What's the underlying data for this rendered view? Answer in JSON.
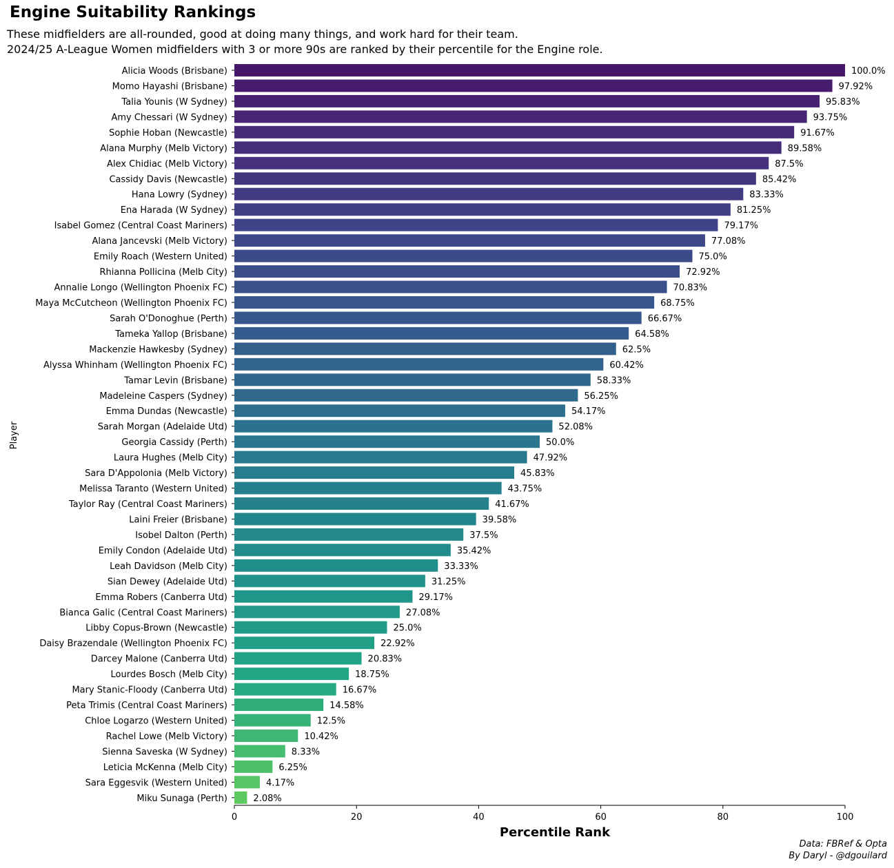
{
  "title": "Engine Suitability Rankings",
  "subtitle_lines": [
    "These midfielders are all-rounded, good at doing many things, and work hard for their team.",
    "2024/25 A-League Women midfielders with 3 or more 90s are ranked by their percentile for the Engine role."
  ],
  "credits": {
    "source": "Data: FBRef & Opta",
    "author": "By Daryl - @dgouilard"
  },
  "chart_data": {
    "type": "bar",
    "orientation": "horizontal",
    "xlabel": "Percentile Rank",
    "ylabel": "Player",
    "xlim": [
      0,
      100
    ],
    "xticks": [
      0,
      20,
      40,
      60,
      80,
      100
    ],
    "colormap": "viridis",
    "value_suffix": "%",
    "grid": false,
    "categories": [
      "Alicia Woods (Brisbane)",
      "Momo Hayashi (Brisbane)",
      "Talia Younis (W Sydney)",
      "Amy Chessari (W Sydney)",
      "Sophie Hoban (Newcastle)",
      "Alana Murphy (Melb Victory)",
      "Alex Chidiac (Melb Victory)",
      "Cassidy Davis (Newcastle)",
      "Hana Lowry (Sydney)",
      "Ena Harada (W Sydney)",
      "Isabel Gomez (Central Coast Mariners)",
      "Alana Jancevski (Melb Victory)",
      "Emily Roach (Western United)",
      "Rhianna Pollicina (Melb City)",
      "Annalie Longo (Wellington Phoenix FC)",
      "Maya McCutcheon (Wellington Phoenix FC)",
      "Sarah O'Donoghue (Perth)",
      "Tameka Yallop (Brisbane)",
      "Mackenzie Hawkesby (Sydney)",
      "Alyssa Whinham (Wellington Phoenix FC)",
      "Tamar Levin (Brisbane)",
      "Madeleine Caspers (Sydney)",
      "Emma Dundas (Newcastle)",
      "Sarah Morgan (Adelaide Utd)",
      "Georgia Cassidy (Perth)",
      "Laura Hughes (Melb City)",
      "Sara D'Appolonia (Melb Victory)",
      "Melissa Taranto (Western United)",
      "Taylor Ray (Central Coast Mariners)",
      "Laini Freier (Brisbane)",
      "Isobel Dalton (Perth)",
      "Emily Condon (Adelaide Utd)",
      "Leah Davidson (Melb City)",
      "Sian Dewey (Adelaide Utd)",
      "Emma Robers (Canberra Utd)",
      "Bianca Galic (Central Coast Mariners)",
      "Libby Copus-Brown (Newcastle)",
      "Daisy Brazendale (Wellington Phoenix FC)",
      "Darcey Malone (Canberra Utd)",
      "Lourdes Bosch (Melb City)",
      "Mary Stanic-Floody (Canberra Utd)",
      "Peta Trimis (Central Coast Mariners)",
      "Chloe Logarzo (Western United)",
      "Rachel Lowe (Melb Victory)",
      "Sienna Saveska (W Sydney)",
      "Leticia McKenna (Melb City)",
      "Sara Eggesvik (Western United)",
      "Miku Sunaga (Perth)"
    ],
    "values": [
      100.0,
      97.92,
      95.83,
      93.75,
      91.67,
      89.58,
      87.5,
      85.42,
      83.33,
      81.25,
      79.17,
      77.08,
      75.0,
      72.92,
      70.83,
      68.75,
      66.67,
      64.58,
      62.5,
      60.42,
      58.33,
      56.25,
      54.17,
      52.08,
      50.0,
      47.92,
      45.83,
      43.75,
      41.67,
      39.58,
      37.5,
      35.42,
      33.33,
      31.25,
      29.17,
      27.08,
      25.0,
      22.92,
      20.83,
      18.75,
      16.67,
      14.58,
      12.5,
      10.42,
      8.33,
      6.25,
      4.17,
      2.08
    ],
    "value_labels": [
      "100.0%",
      "97.92%",
      "95.83%",
      "93.75%",
      "91.67%",
      "89.58%",
      "87.5%",
      "85.42%",
      "83.33%",
      "81.25%",
      "79.17%",
      "77.08%",
      "75.0%",
      "72.92%",
      "70.83%",
      "68.75%",
      "66.67%",
      "64.58%",
      "62.5%",
      "60.42%",
      "58.33%",
      "56.25%",
      "54.17%",
      "52.08%",
      "50.0%",
      "47.92%",
      "45.83%",
      "43.75%",
      "41.67%",
      "39.58%",
      "37.5%",
      "35.42%",
      "33.33%",
      "31.25%",
      "29.17%",
      "27.08%",
      "25.0%",
      "22.92%",
      "20.83%",
      "18.75%",
      "16.67%",
      "14.58%",
      "12.5%",
      "10.42%",
      "8.33%",
      "6.25%",
      "4.17%",
      "2.08%"
    ]
  }
}
